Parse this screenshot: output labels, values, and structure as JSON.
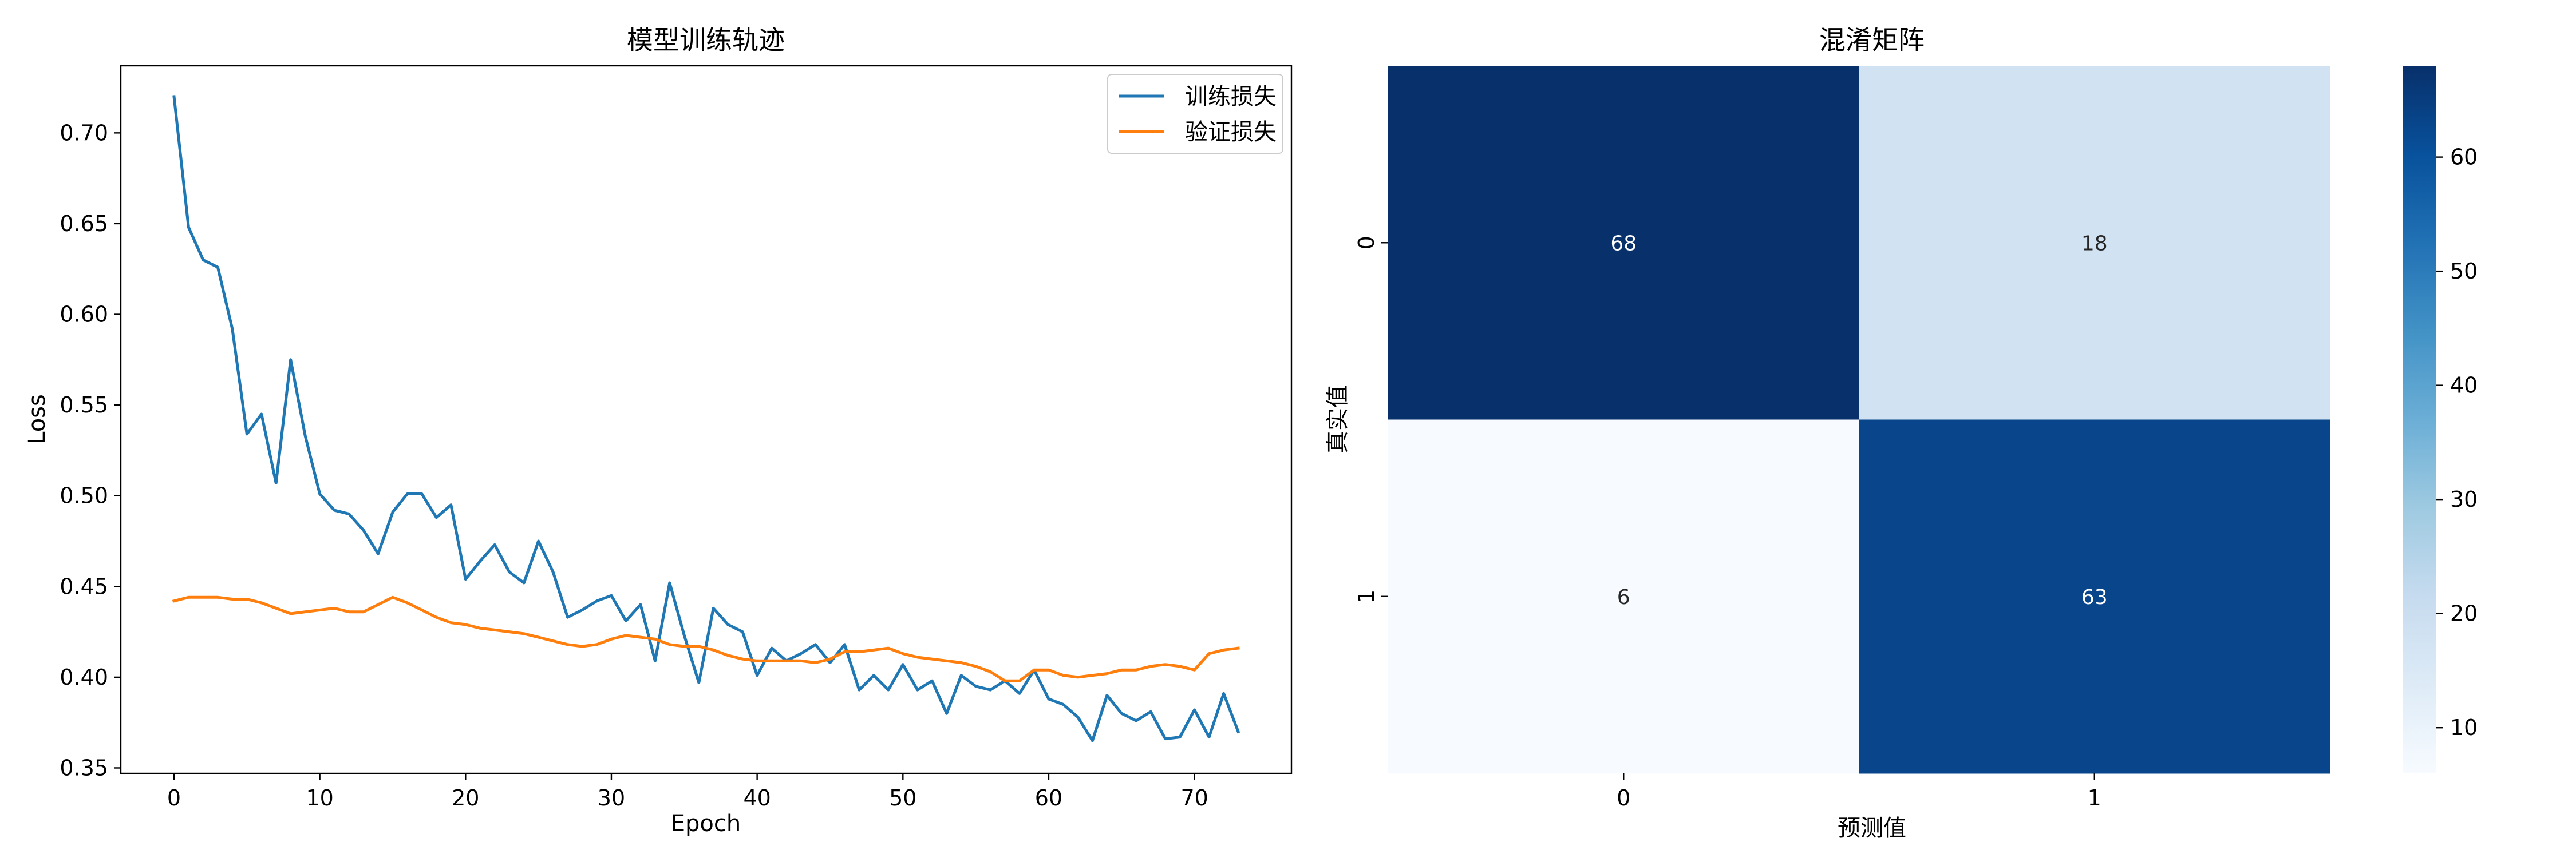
{
  "chart_data": [
    {
      "type": "line",
      "title": "模型训练轨迹",
      "xlabel": "Epoch",
      "ylabel": "Loss",
      "xlim": [
        -3.65,
        76.65
      ],
      "ylim": [
        0.347,
        0.737
      ],
      "xticks": [
        0,
        10,
        20,
        30,
        40,
        50,
        60,
        70
      ],
      "yticks": [
        0.35,
        0.4,
        0.45,
        0.5,
        0.55,
        0.6,
        0.65,
        0.7
      ],
      "ytick_labels": [
        "0.35",
        "0.40",
        "0.45",
        "0.50",
        "0.55",
        "0.60",
        "0.65",
        "0.70"
      ],
      "grid": false,
      "legend_position": "upper right",
      "series": [
        {
          "name": "训练损失",
          "color": "#1f77b4",
          "values": [
            0.72,
            0.648,
            0.63,
            0.626,
            0.592,
            0.534,
            0.545,
            0.507,
            0.575,
            0.533,
            0.501,
            0.492,
            0.49,
            0.481,
            0.468,
            0.491,
            0.501,
            0.501,
            0.488,
            0.495,
            0.454,
            0.464,
            0.473,
            0.458,
            0.452,
            0.475,
            0.458,
            0.433,
            0.437,
            0.442,
            0.445,
            0.431,
            0.44,
            0.409,
            0.452,
            0.423,
            0.397,
            0.438,
            0.429,
            0.425,
            0.401,
            0.416,
            0.409,
            0.413,
            0.418,
            0.408,
            0.418,
            0.393,
            0.401,
            0.393,
            0.407,
            0.393,
            0.398,
            0.38,
            0.401,
            0.395,
            0.393,
            0.398,
            0.391,
            0.404,
            0.388,
            0.385,
            0.378,
            0.365,
            0.39,
            0.38,
            0.376,
            0.381,
            0.366,
            0.367,
            0.382,
            0.367,
            0.391,
            0.37
          ]
        },
        {
          "name": "验证损失",
          "color": "#ff7f0e",
          "values": [
            0.442,
            0.444,
            0.444,
            0.444,
            0.443,
            0.443,
            0.441,
            0.438,
            0.435,
            0.436,
            0.437,
            0.438,
            0.436,
            0.436,
            0.44,
            0.444,
            0.441,
            0.437,
            0.433,
            0.43,
            0.429,
            0.427,
            0.426,
            0.425,
            0.424,
            0.422,
            0.42,
            0.418,
            0.417,
            0.418,
            0.421,
            0.423,
            0.422,
            0.421,
            0.418,
            0.417,
            0.417,
            0.415,
            0.412,
            0.41,
            0.409,
            0.409,
            0.409,
            0.409,
            0.408,
            0.41,
            0.414,
            0.414,
            0.415,
            0.416,
            0.413,
            0.411,
            0.41,
            0.409,
            0.408,
            0.406,
            0.403,
            0.398,
            0.398,
            0.404,
            0.404,
            0.401,
            0.4,
            0.401,
            0.402,
            0.404,
            0.404,
            0.406,
            0.407,
            0.406,
            0.404,
            0.413,
            0.415,
            0.416
          ]
        }
      ]
    },
    {
      "type": "heatmap",
      "title": "混淆矩阵",
      "xlabel": "预测值",
      "ylabel": "真实值",
      "x_categories": [
        "0",
        "1"
      ],
      "y_categories": [
        "0",
        "1"
      ],
      "values": [
        [
          68,
          18
        ],
        [
          6,
          63
        ]
      ],
      "colormap": "Blues",
      "colorbar": {
        "min": 6,
        "max": 68,
        "ticks": [
          10,
          20,
          30,
          40,
          50,
          60
        ],
        "tick_labels": [
          "10",
          "20",
          "30",
          "40",
          "50",
          "60"
        ]
      }
    }
  ]
}
